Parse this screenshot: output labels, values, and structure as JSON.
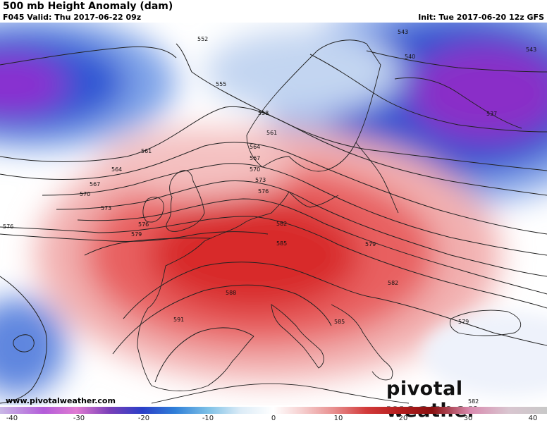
{
  "header": {
    "title": "500 mb Height Anomaly (dam)",
    "valid": "F045 Valid: Thu 2017-06-22 09z",
    "init": "Init: Tue 2017-06-20 12z GFS"
  },
  "map": {
    "contour_labels": [
      "552",
      "555",
      "558",
      "561",
      "561",
      "564",
      "564",
      "567",
      "567",
      "570",
      "570",
      "573",
      "573",
      "576",
      "576",
      "576",
      "579",
      "579",
      "579",
      "582",
      "582",
      "582",
      "585",
      "585",
      "588",
      "591",
      "537",
      "540",
      "543",
      "543"
    ]
  },
  "colorbar": {
    "ticks": [
      "-40",
      "-30",
      "-20",
      "-10",
      "0",
      "10",
      "20",
      "30",
      "40"
    ],
    "colors": {
      "neg_deep": "#8a1fc8",
      "neg": "#1f4fd6",
      "neg_light": "#a9c4ee",
      "zero": "#ffffff",
      "pos_light": "#f4b6b6",
      "pos": "#e13a3a",
      "pos_deep": "#9b1010"
    }
  },
  "footer": {
    "watermark": "www.pivotalweather.com",
    "logo": "pivotal weather"
  }
}
